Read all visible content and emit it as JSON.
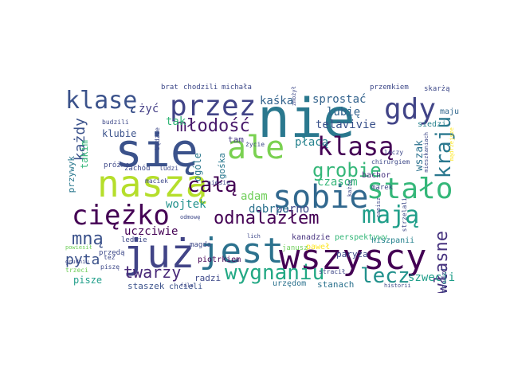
{
  "palette": {
    "deep_purple": "#440154",
    "indigo": "#3b528b",
    "slate": "#33638d",
    "teal": "#26828e",
    "sea": "#1f9e89",
    "green": "#35b779",
    "lime": "#6ece58",
    "yellow_green": "#b5de2b",
    "yellow": "#fde725"
  },
  "words": [
    {
      "text": "nie",
      "color": "#2a788e",
      "rot": 0
    },
    {
      "text": "się",
      "color": "#3b528b",
      "rot": 0
    },
    {
      "text": "już",
      "color": "#414487",
      "rot": 0
    },
    {
      "text": "jest",
      "color": "#2c728e",
      "rot": 0
    },
    {
      "text": "wszyscy",
      "color": "#440154",
      "rot": 0
    },
    {
      "text": "naszą",
      "color": "#b5de2b",
      "rot": 0
    },
    {
      "text": "ale",
      "color": "#7ad151",
      "rot": 0
    },
    {
      "text": "sobie",
      "color": "#31688e",
      "rot": 0
    },
    {
      "text": "stało",
      "color": "#35b779",
      "rot": 0
    },
    {
      "text": "przez",
      "color": "#414487",
      "rot": 0
    },
    {
      "text": "gdy",
      "color": "#414487",
      "rot": 0
    },
    {
      "text": "klasę",
      "color": "#3b528b",
      "rot": 0
    },
    {
      "text": "klasą",
      "color": "#440154",
      "rot": 0
    },
    {
      "text": "ciężko",
      "color": "#440154",
      "rot": 0
    },
    {
      "text": "mają",
      "color": "#1f9e89",
      "rot": 0
    },
    {
      "text": "odnalazłem",
      "color": "#440154",
      "rot": 0
    },
    {
      "text": "całą",
      "color": "#440154",
      "rot": 0
    },
    {
      "text": "młodość",
      "color": "#48186a",
      "rot": 0
    },
    {
      "text": "grobie",
      "color": "#35b779",
      "rot": 0
    },
    {
      "text": "kraju",
      "color": "#2a788e",
      "rot": 90
    },
    {
      "text": "wygnaniu",
      "color": "#22a884",
      "rot": 0
    },
    {
      "text": "lecz",
      "color": "#21918c",
      "rot": 0
    },
    {
      "text": "mną",
      "color": "#3b528b",
      "rot": 0
    },
    {
      "text": "własne",
      "color": "#46327e",
      "rot": 90
    },
    {
      "text": "twarzy",
      "color": "#482878",
      "rot": 0
    },
    {
      "text": "każdy",
      "color": "#3b528b",
      "rot": 90
    },
    {
      "text": "pyta",
      "color": "#3b528b",
      "rot": 0
    },
    {
      "text": "płacą",
      "color": "#26828e",
      "rot": 0
    },
    {
      "text": "wszak",
      "color": "#2c728e",
      "rot": 90
    },
    {
      "text": "sprostać",
      "color": "#33638d",
      "rot": 0
    },
    {
      "text": "kaśka",
      "color": "#33638d",
      "rot": 0
    },
    {
      "text": "lubię",
      "color": "#33638d",
      "rot": 0
    },
    {
      "text": "telavivie",
      "color": "#3b528b",
      "rot": 0
    },
    {
      "text": "uczciwie",
      "color": "#440154",
      "rot": 0
    },
    {
      "text": "wojtek",
      "color": "#21918c",
      "rot": 0
    },
    {
      "text": "adam",
      "color": "#6ece58",
      "rot": 0
    },
    {
      "text": "porno",
      "color": "#3e4989",
      "rot": 0
    },
    {
      "text": "dobrze",
      "color": "#2c728e",
      "rot": 0
    },
    {
      "text": "czasom",
      "color": "#35b779",
      "rot": 0
    },
    {
      "text": "szwecji",
      "color": "#1f9e89",
      "rot": 0
    },
    {
      "text": "żyć",
      "color": "#433e85",
      "rot": 0
    },
    {
      "text": "tak",
      "color": "#35b779",
      "rot": 0
    },
    {
      "text": "klubie",
      "color": "#3b528b",
      "rot": 0
    },
    {
      "text": "takim",
      "color": "#35b779",
      "rot": 90
    },
    {
      "text": "tam",
      "color": "#443983",
      "rot": 0
    },
    {
      "text": "ogóle",
      "color": "#2a788e",
      "rot": 90
    },
    {
      "text": "gośka",
      "color": "#2a788e",
      "rot": 90
    },
    {
      "text": "siedzi",
      "color": "#26828e",
      "rot": 0
    },
    {
      "text": "maju",
      "color": "#31688e",
      "rot": 0
    },
    {
      "text": "paryża",
      "color": "#3e4989",
      "rot": 0
    },
    {
      "text": "paweł",
      "color": "#fde725",
      "rot": 0
    },
    {
      "text": "kanadzie",
      "color": "#46327e",
      "rot": 0
    },
    {
      "text": "perspektywy",
      "color": "#35b779",
      "rot": 0
    },
    {
      "text": "piotrkiem",
      "color": "#440154",
      "rot": 0
    },
    {
      "text": "staszek",
      "color": "#3b528b",
      "rot": 0
    },
    {
      "text": "pisze",
      "color": "#1f9e89",
      "rot": 0
    },
    {
      "text": "radzi",
      "color": "#3e4989",
      "rot": 0
    },
    {
      "text": "chcieli",
      "color": "#3b528b",
      "rot": 0
    },
    {
      "text": "urzędom",
      "color": "#2c728e",
      "rot": 0
    },
    {
      "text": "stanach",
      "color": "#2c728e",
      "rot": 0
    },
    {
      "text": "przywyk",
      "color": "#2a788e",
      "rot": 90
    },
    {
      "text": "bachor",
      "color": "#46327e",
      "rot": 0
    },
    {
      "text": "marek",
      "color": "#3e4989",
      "rot": 0
    },
    {
      "text": "hiszpanii",
      "color": "#26828e",
      "rot": 0
    },
    {
      "text": "wychodzi",
      "color": "#3e4989",
      "rot": 90
    },
    {
      "text": "brat",
      "color": "#3e4989",
      "rot": 0
    },
    {
      "text": "chodzili",
      "color": "#3e4989",
      "rot": 0
    },
    {
      "text": "michała",
      "color": "#3e4989",
      "rot": 0
    },
    {
      "text": "przemkiem",
      "color": "#3e4989",
      "rot": 0
    },
    {
      "text": "skarżą",
      "color": "#3e4989",
      "rot": 0
    },
    {
      "text": "budzili",
      "color": "#3e4989",
      "rot": 0
    },
    {
      "text": "próżno",
      "color": "#3e4989",
      "rot": 0
    },
    {
      "text": "zachód",
      "color": "#3e4989",
      "rot": 0
    },
    {
      "text": "ludzi",
      "color": "#3e4989",
      "rot": 0
    },
    {
      "text": "będzie",
      "color": "#3e4989",
      "rot": 90
    },
    {
      "text": "życie",
      "color": "#3e4989",
      "rot": 0
    },
    {
      "text": "leczy",
      "color": "#3e4989",
      "rot": 0
    },
    {
      "text": "chirurgiem",
      "color": "#3e4989",
      "rot": 0
    },
    {
      "text": "maciek",
      "color": "#3e4989",
      "rot": 0
    },
    {
      "text": "odmowę",
      "color": "#3e4989",
      "rot": 0
    },
    {
      "text": "ledwie",
      "color": "#3e4989",
      "rot": 0
    },
    {
      "text": "magda",
      "color": "#3e4989",
      "rot": 0
    },
    {
      "text": "janusz",
      "color": "#6ece58",
      "rot": 0
    },
    {
      "text": "trzeci",
      "color": "#6ece58",
      "rot": 0
    },
    {
      "text": "powiesił",
      "color": "#6ece58",
      "rot": 0
    },
    {
      "text": "przędą",
      "color": "#3e4989",
      "rot": 0
    },
    {
      "text": "grudniu",
      "color": "#3e4989",
      "rot": 0
    },
    {
      "text": "piszę",
      "color": "#3e4989",
      "rot": 0
    },
    {
      "text": "tez",
      "color": "#3e4989",
      "rot": 0
    },
    {
      "text": "fala",
      "color": "#3e4989",
      "rot": 0
    },
    {
      "text": "stracił",
      "color": "#3e4989",
      "rot": 0
    },
    {
      "text": "historii",
      "color": "#3e4989",
      "rot": 0
    },
    {
      "text": "strzelali",
      "color": "#3e4989",
      "rot": 90
    },
    {
      "text": "mieszkaniach",
      "color": "#3e4989",
      "rot": 90
    },
    {
      "text": "napisz",
      "color": "#3e4989",
      "rot": 90
    },
    {
      "text": "każdą",
      "color": "#3e4989",
      "rot": 90
    },
    {
      "text": "niesie",
      "color": "#3e4989",
      "rot": 0
    },
    {
      "text": "lich",
      "color": "#3e4989",
      "rot": 0
    },
    {
      "text": "zmożył",
      "color": "#3e4989",
      "rot": 90
    },
    {
      "text": "mądrzejsze",
      "color": "#fde725",
      "rot": 90
    }
  ]
}
